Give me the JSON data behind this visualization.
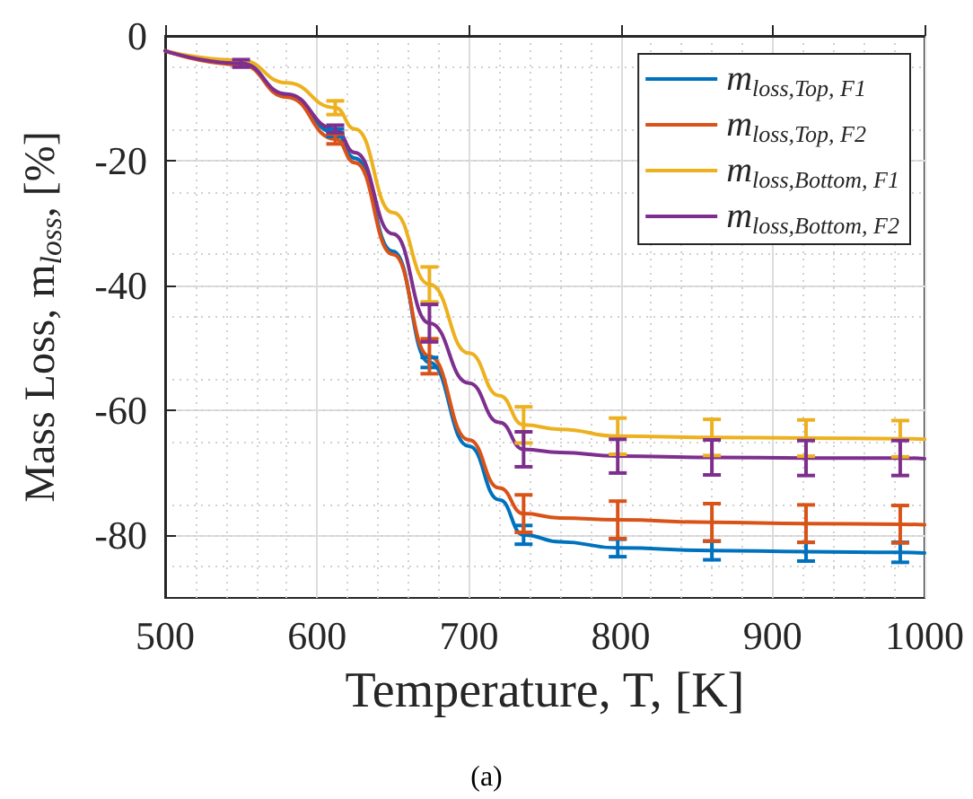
{
  "chart_data": {
    "type": "line",
    "xlabel": "Temperature, T, [K]",
    "ylabel": "Mass Loss, m$_{loss}$, [%]",
    "x": [
      500,
      550,
      580,
      612,
      625,
      650,
      674,
      700,
      720,
      736,
      760,
      798,
      860,
      922,
      984,
      1000
    ],
    "series": [
      {
        "name": "m$_{loss,Top, F1}$",
        "color": "#0072bd",
        "values": [
          -2.4,
          -4.3,
          -9.5,
          -15.5,
          -19.6,
          -34.5,
          -52.3,
          -65.7,
          -74.3,
          -79.9,
          -81,
          -82,
          -82.4,
          -82.6,
          -82.7,
          -82.8
        ],
        "errors": [
          null,
          null,
          null,
          0.6,
          null,
          null,
          0.8,
          null,
          null,
          1.5,
          null,
          1.4,
          1.5,
          1.5,
          1.6,
          null
        ]
      },
      {
        "name": "m$_{loss,Top, F2}$",
        "color": "#d95319",
        "values": [
          -2.4,
          -4.6,
          -9.8,
          -16.5,
          -20.3,
          -35,
          -51.3,
          -64.7,
          -72.4,
          -76.5,
          -77.2,
          -77.5,
          -77.9,
          -78.1,
          -78.2,
          -78.3
        ],
        "errors": [
          null,
          null,
          null,
          0.8,
          null,
          null,
          2.8,
          null,
          null,
          3,
          null,
          3,
          3,
          3,
          3,
          null
        ]
      },
      {
        "name": "m$_{loss,Bottom, F1}$",
        "color": "#edb120",
        "values": [
          -2.4,
          -3.9,
          -7.5,
          -11.5,
          -14.9,
          -28.3,
          -39.8,
          -50.8,
          -57.6,
          -62.3,
          -63,
          -64.1,
          -64.3,
          -64.4,
          -64.5,
          -64.6
        ],
        "errors": [
          null,
          null,
          null,
          1.1,
          null,
          null,
          2.8,
          null,
          null,
          2.9,
          null,
          2.9,
          2.9,
          2.9,
          2.9,
          null
        ]
      },
      {
        "name": "m$_{loss,Bottom, F2}$",
        "color": "#7e2f8e",
        "values": [
          -2.4,
          -4.4,
          -9.3,
          -14.9,
          -18.7,
          -31.7,
          -46,
          -55.6,
          -61.9,
          -66.2,
          -66.7,
          -67.3,
          -67.5,
          -67.6,
          -67.6,
          -67.7
        ],
        "errors": [
          null,
          0.6,
          null,
          0.6,
          null,
          null,
          3,
          null,
          null,
          2.8,
          null,
          2.7,
          2.8,
          2.8,
          2.8,
          null
        ]
      }
    ],
    "xlim": [
      500,
      1000
    ],
    "xticks": [
      500,
      600,
      700,
      800,
      900,
      1000
    ],
    "ylim": [
      -90,
      0
    ],
    "yticks": [
      -80,
      -60,
      -40,
      -20,
      0
    ],
    "grid": true,
    "legend": "top right",
    "marker": "none",
    "line_style": "solid",
    "annotations": [
      "(a)"
    ]
  }
}
